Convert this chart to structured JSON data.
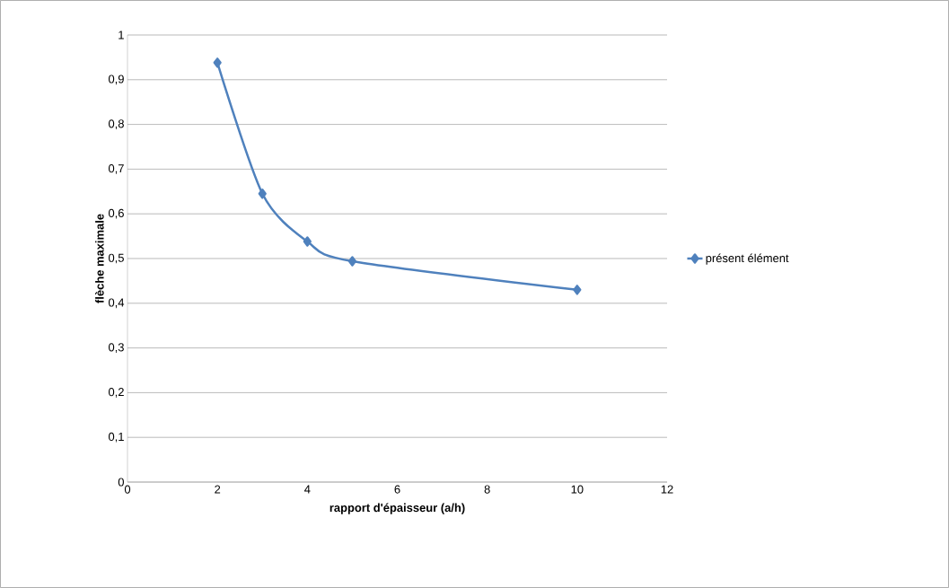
{
  "chart_data": {
    "type": "line",
    "xlabel": "rapport d'épaisseur (a/h)",
    "ylabel": "flèche maximale",
    "x": [
      2,
      3,
      4,
      5,
      10
    ],
    "series": [
      {
        "name": "présent élément",
        "color": "#4f81bd",
        "values": [
          0.938,
          0.645,
          0.538,
          0.494,
          0.43
        ]
      }
    ],
    "xlim": [
      0,
      12
    ],
    "xticks": [
      0,
      2,
      4,
      6,
      8,
      10,
      12
    ],
    "ylim": [
      0,
      1
    ],
    "yticks": [
      0,
      {
        "value": 0.1,
        "label": "0,1"
      },
      {
        "value": 0.2,
        "label": "0,2"
      },
      {
        "value": 0.3,
        "label": "0,3"
      },
      {
        "value": 0.4,
        "label": "0,4"
      },
      {
        "value": 0.5,
        "label": "0,5"
      },
      {
        "value": 0.6,
        "label": "0,6"
      },
      {
        "value": 0.7,
        "label": "0,7"
      },
      {
        "value": 0.8,
        "label": "0,8"
      },
      {
        "value": 0.9,
        "label": "0,9"
      },
      1
    ],
    "grid": "y",
    "legend": "right",
    "marker": "diamond",
    "line_style": "solid"
  }
}
